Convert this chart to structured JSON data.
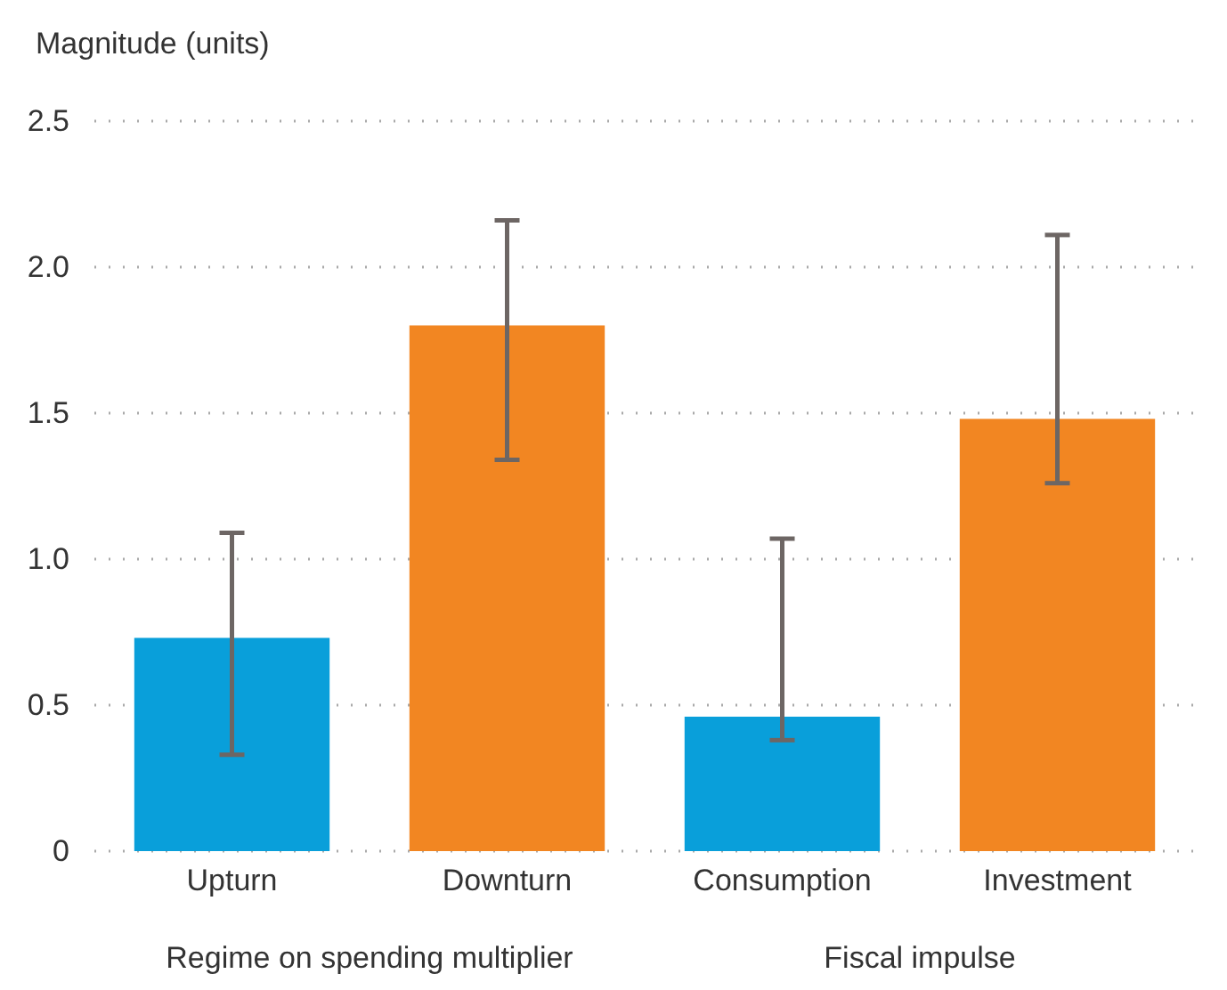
{
  "chart_data": {
    "type": "bar",
    "ylabel": "Magnitude (units)",
    "categories": [
      "Upturn",
      "Downturn",
      "Consumption",
      "Investment"
    ],
    "values": [
      0.73,
      1.8,
      0.46,
      1.48
    ],
    "colors": [
      "#099fda",
      "#f28622",
      "#099fda",
      "#f28622"
    ],
    "errors": [
      [
        0.33,
        1.09
      ],
      [
        1.34,
        2.16
      ],
      [
        0.38,
        1.07
      ],
      [
        1.26,
        2.11
      ]
    ],
    "ylim": [
      0,
      2.5
    ],
    "yticks": [
      0,
      0.5,
      {
        "value": 1,
        "label": "1.0"
      },
      {
        "value": 1.5,
        "label": "1.5"
      },
      {
        "value": 2,
        "label": "2.0"
      },
      {
        "value": 2.5,
        "label": "2.5"
      }
    ],
    "grid": "y",
    "annotations": [
      "Regime on spending multiplier",
      "Fiscal impulse"
    ]
  }
}
